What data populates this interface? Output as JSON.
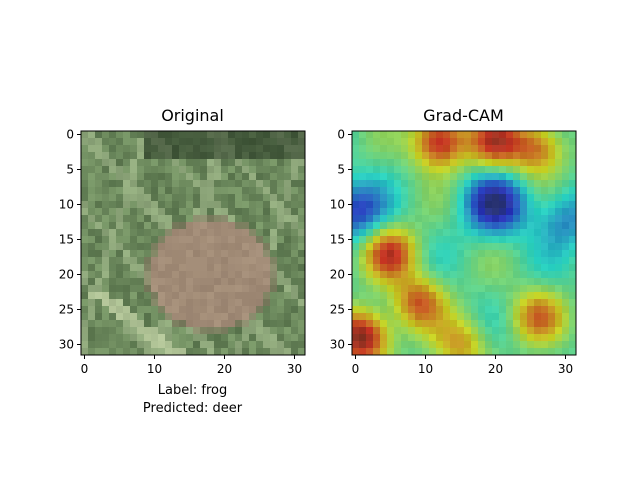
{
  "chart_data": [
    {
      "type": "image",
      "title": "Original",
      "description_note": "",
      "xlim": [
        -0.5,
        31.5
      ],
      "ylim": [
        31.5,
        -0.5
      ],
      "xticks": [
        0,
        10,
        20,
        30
      ],
      "yticks": [
        0,
        5,
        10,
        15,
        20,
        25,
        30
      ],
      "grid": false,
      "caption_lines": [
        "Label: frog",
        "Predicted: deer"
      ]
    },
    {
      "type": "heatmap",
      "title": "Grad-CAM",
      "colormap": "jet",
      "xlim": [
        -0.5,
        31.5
      ],
      "ylim": [
        31.5,
        -0.5
      ],
      "xticks": [
        0,
        10,
        20,
        30
      ],
      "yticks": [
        0,
        5,
        10,
        15,
        20,
        25,
        30
      ],
      "grid": false,
      "hotspots": [
        {
          "x": 12,
          "y": 1,
          "v": 0.95
        },
        {
          "x": 20,
          "y": 1,
          "v": 0.85
        },
        {
          "x": 26,
          "y": 2,
          "v": 0.8
        },
        {
          "x": 1,
          "y": 29,
          "v": 1.0
        },
        {
          "x": 5,
          "y": 17,
          "v": 0.85
        },
        {
          "x": 9,
          "y": 24,
          "v": 0.8
        },
        {
          "x": 26,
          "y": 26,
          "v": 0.75
        },
        {
          "x": 15,
          "y": 30,
          "v": 0.7
        }
      ],
      "coldspots": [
        {
          "x": 20,
          "y": 10,
          "v": 0.05
        },
        {
          "x": 0,
          "y": 11,
          "v": 0.15
        },
        {
          "x": 30,
          "y": 12,
          "v": 0.25
        }
      ]
    }
  ],
  "colors": {
    "frog": "#a9947e",
    "grass_dark": "#3f5a36",
    "grass_light": "#8fae7c"
  }
}
